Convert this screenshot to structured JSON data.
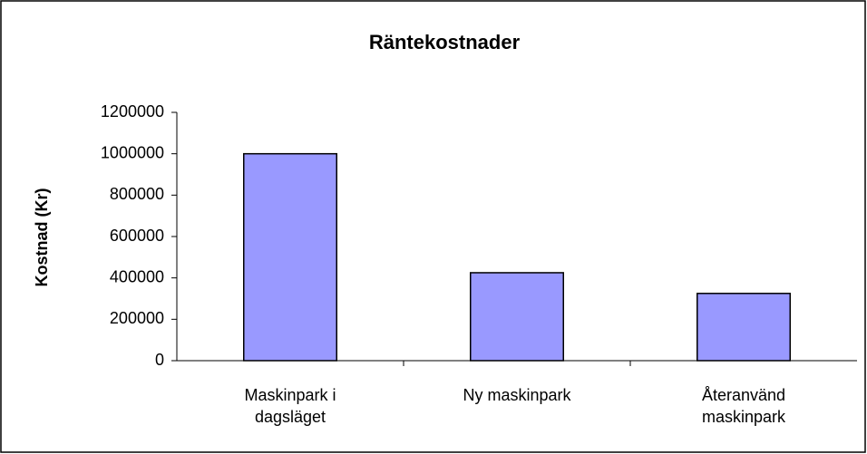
{
  "chart_data": {
    "type": "bar",
    "title": "Räntekostnader",
    "y_label": "Kostnad (Kr)",
    "categories": [
      "Maskinpark i dagsläget",
      "Ny maskinpark",
      "Återanvänd maskinpark"
    ],
    "values": [
      1000000,
      425000,
      325000
    ],
    "color": "#9999ff",
    "ylim": [
      0,
      1200000
    ],
    "yticks": [
      0,
      200000,
      400000,
      600000,
      800000,
      1000000,
      1200000
    ],
    "grid": false
  }
}
